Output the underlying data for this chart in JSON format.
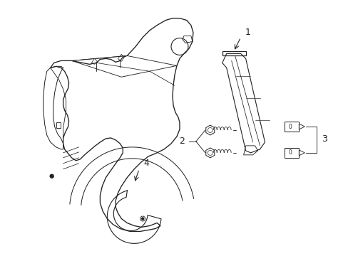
{
  "background_color": "#ffffff",
  "line_color": "#222222",
  "line_width": 0.8,
  "label_fontsize": 9,
  "figsize": [
    4.89,
    3.6
  ],
  "dpi": 100
}
